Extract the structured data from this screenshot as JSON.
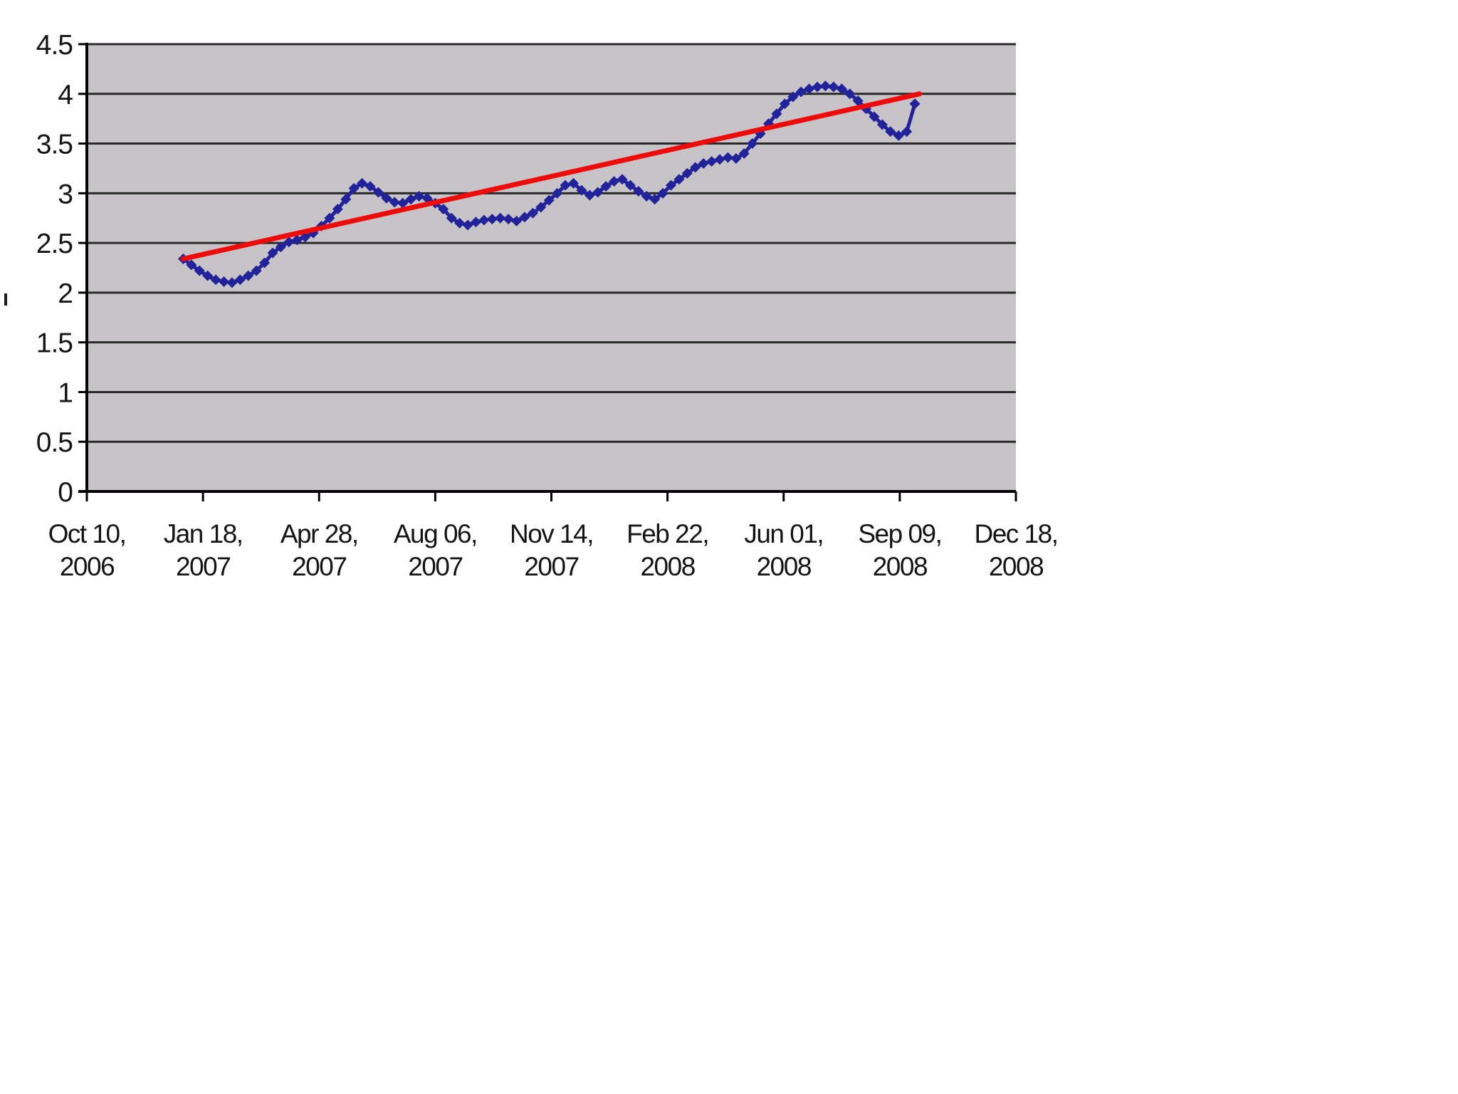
{
  "page": {
    "background_color": "#ffffff",
    "stray_mark": "|"
  },
  "chart_data": {
    "type": "line",
    "title": "",
    "xlabel": "",
    "ylabel": "",
    "legend": "none",
    "grid": "on",
    "plot": {
      "background_color": "#c7c4c7",
      "gridline_color": "#2a2a2a",
      "axis_color": "#000000"
    },
    "y_axis": {
      "min": 0,
      "max": 4.5,
      "step": 0.5,
      "tick_labels": [
        "0",
        "0.5",
        "1",
        "1.5",
        "2",
        "2.5",
        "3",
        "3.5",
        "4",
        "4.5"
      ]
    },
    "x_axis": {
      "unit": "days since first tick",
      "range_days": [
        0,
        800
      ],
      "tick_days": [
        0,
        100,
        200,
        300,
        400,
        500,
        600,
        700,
        800
      ],
      "tick_labels_line1": [
        "Oct 10,",
        "Jan 18,",
        "Apr 28,",
        "Aug 06,",
        "Nov 14,",
        "Feb 22,",
        "Jun 01,",
        "Sep 09,",
        "Dec 18,"
      ],
      "tick_labels_line2": [
        "2006",
        "2007",
        "2007",
        "2007",
        "2007",
        "2008",
        "2008",
        "2008",
        "2008"
      ]
    },
    "series": [
      {
        "name": "weekly-data-series",
        "color": "#22229a",
        "marker": "diamond",
        "marker_size": 15,
        "start_day_offset": 83,
        "start_date": "Jan 1, 2007",
        "interval_days": 7,
        "values": [
          2.34,
          2.28,
          2.22,
          2.17,
          2.13,
          2.11,
          2.1,
          2.13,
          2.17,
          2.22,
          2.3,
          2.4,
          2.46,
          2.51,
          2.53,
          2.56,
          2.6,
          2.67,
          2.75,
          2.84,
          2.94,
          3.05,
          3.1,
          3.07,
          3.01,
          2.95,
          2.91,
          2.9,
          2.94,
          2.97,
          2.95,
          2.9,
          2.84,
          2.75,
          2.7,
          2.68,
          2.71,
          2.73,
          2.74,
          2.75,
          2.74,
          2.72,
          2.76,
          2.8,
          2.86,
          2.93,
          3.0,
          3.08,
          3.1,
          3.03,
          2.98,
          3.01,
          3.07,
          3.12,
          3.14,
          3.08,
          3.02,
          2.97,
          2.94,
          3.0,
          3.08,
          3.14,
          3.2,
          3.26,
          3.3,
          3.32,
          3.34,
          3.36,
          3.35,
          3.4,
          3.5,
          3.6,
          3.7,
          3.8,
          3.9,
          3.97,
          4.02,
          4.05,
          4.07,
          4.08,
          4.07,
          4.05,
          4.0,
          3.93,
          3.85,
          3.77,
          3.69,
          3.62,
          3.58,
          3.62,
          3.9
        ]
      }
    ],
    "trendline": {
      "name": "linear-trendline",
      "color": "#f00b0b",
      "start": {
        "day": 83,
        "value": 2.34
      },
      "end": {
        "day": 717,
        "value": 4.0
      }
    }
  }
}
